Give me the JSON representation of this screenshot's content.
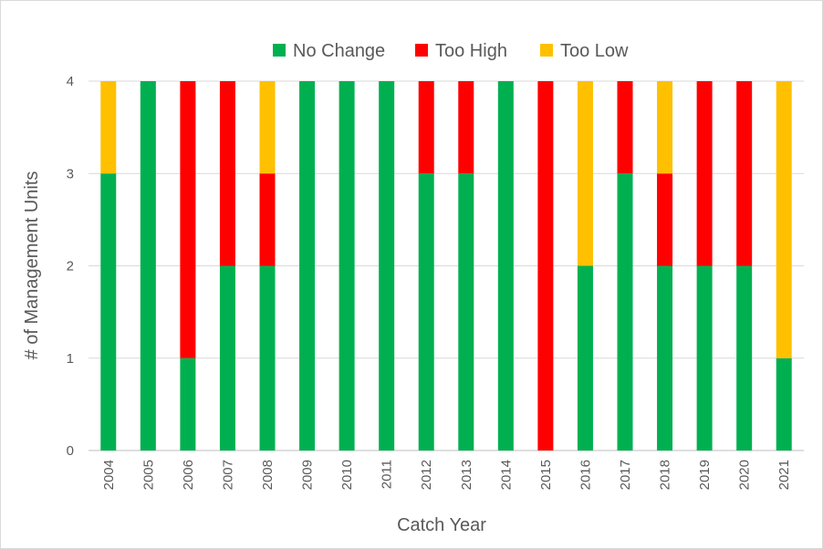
{
  "chart_data": {
    "type": "bar",
    "stacked": true,
    "categories": [
      "2004",
      "2005",
      "2006",
      "2007",
      "2008",
      "2009",
      "2010",
      "2011",
      "2012",
      "2013",
      "2014",
      "2015",
      "2016",
      "2017",
      "2018",
      "2019",
      "2020",
      "2021"
    ],
    "series": [
      {
        "name": "No Change",
        "color": "#00b050",
        "values": [
          3,
          4,
          1,
          2,
          2,
          4,
          4,
          4,
          3,
          3,
          4,
          0,
          2,
          3,
          2,
          2,
          2,
          1
        ]
      },
      {
        "name": "Too High",
        "color": "#ff0000",
        "values": [
          0,
          0,
          3,
          2,
          1,
          0,
          0,
          0,
          1,
          1,
          0,
          4,
          0,
          1,
          1,
          2,
          2,
          0
        ]
      },
      {
        "name": "Too Low",
        "color": "#ffc000",
        "values": [
          1,
          0,
          0,
          0,
          1,
          0,
          0,
          0,
          0,
          0,
          0,
          0,
          2,
          0,
          1,
          0,
          0,
          3
        ]
      }
    ],
    "xlabel": "Catch Year",
    "ylabel": "# of Management Units",
    "ylim": [
      0,
      4
    ],
    "yticks": [
      "0",
      "1",
      "2",
      "3",
      "4"
    ],
    "grid": true,
    "legend_position": "top"
  }
}
